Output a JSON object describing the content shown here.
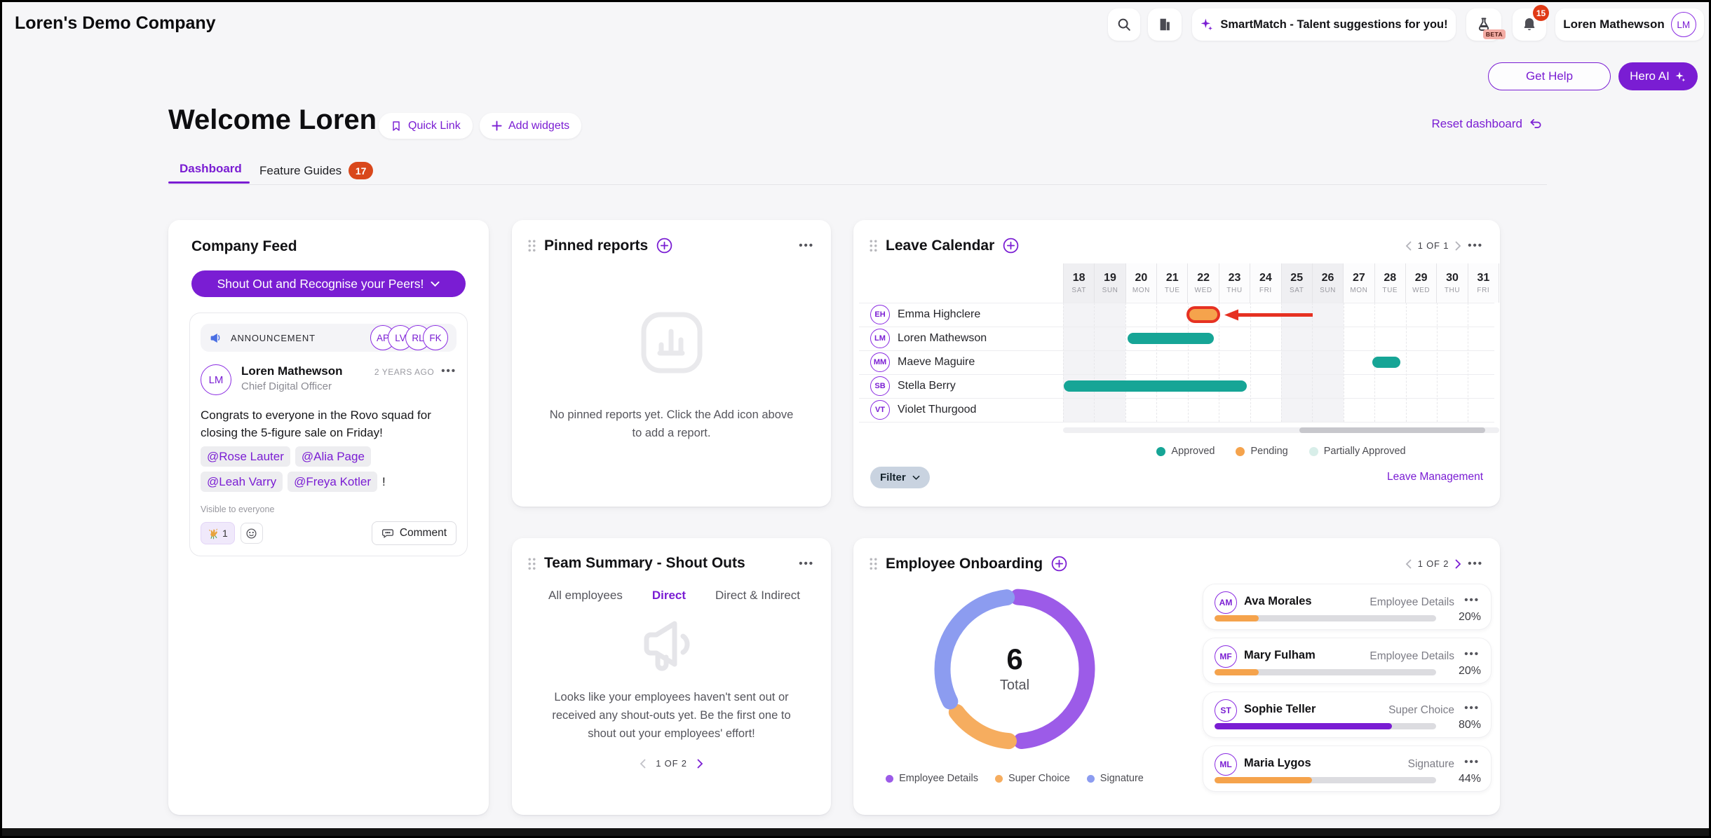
{
  "topbar": {
    "company_name": "Loren's Demo Company",
    "smartmatch": "SmartMatch - Talent suggestions for you!",
    "beta": "BETA",
    "notification_count": "15",
    "user_name": "Loren Mathewson",
    "user_initials": "LM"
  },
  "header_actions": {
    "get_help": "Get Help",
    "hero_ai": "Hero AI"
  },
  "welcome": {
    "title": "Welcome Loren",
    "quick_link": "Quick Link",
    "add_widgets": "Add widgets",
    "reset": "Reset dashboard"
  },
  "tabs": {
    "dashboard": "Dashboard",
    "feature_guides": "Feature Guides",
    "badge": "17"
  },
  "company_feed": {
    "title": "Company Feed",
    "shoutout_button": "Shout Out and Recognise your Peers!",
    "announcement_label": "ANNOUNCEMENT",
    "announcement_avatars": [
      "AP",
      "LV",
      "RL",
      "FK"
    ],
    "post": {
      "author": "Loren Mathewson",
      "author_initials": "LM",
      "role": "Chief Digital Officer",
      "time": "2 YEARS AGO",
      "more": "•••",
      "line1": "Congrats to everyone in the Rovo squad for",
      "line2": "closing the 5-figure sale on Friday!",
      "mentions": [
        "@Rose Lauter",
        "@Alia Page",
        "@Leah Varry",
        "@Freya Kotler"
      ],
      "suffix": "!",
      "visibility": "Visible to everyone",
      "reaction_count": "1",
      "comment_label": "Comment"
    }
  },
  "pinned_reports": {
    "title": "Pinned reports",
    "more": "•••",
    "empty_line1": "No pinned reports yet. Click the Add icon above",
    "empty_line2": "to add a report."
  },
  "leave_calendar": {
    "title": "Leave Calendar",
    "pagination": "1 OF 1",
    "more": "•••",
    "days": [
      {
        "num": "18",
        "dow": "SAT"
      },
      {
        "num": "19",
        "dow": "SUN"
      },
      {
        "num": "20",
        "dow": "MON"
      },
      {
        "num": "21",
        "dow": "TUE"
      },
      {
        "num": "22",
        "dow": "WED"
      },
      {
        "num": "23",
        "dow": "THU"
      },
      {
        "num": "24",
        "dow": "FRI"
      },
      {
        "num": "25",
        "dow": "SAT"
      },
      {
        "num": "26",
        "dow": "SUN"
      },
      {
        "num": "27",
        "dow": "MON"
      },
      {
        "num": "28",
        "dow": "TUE"
      },
      {
        "num": "29",
        "dow": "WED"
      },
      {
        "num": "30",
        "dow": "THU"
      },
      {
        "num": "31",
        "dow": "FRI"
      }
    ],
    "people": [
      {
        "initials": "EH",
        "name": "Emma Highclere"
      },
      {
        "initials": "LM",
        "name": "Loren Mathewson"
      },
      {
        "initials": "MM",
        "name": "Maeve Maguire"
      },
      {
        "initials": "SB",
        "name": "Stella Berry"
      },
      {
        "initials": "VT",
        "name": "Violet Thurgood"
      }
    ],
    "bars": [
      {
        "row": 0,
        "start": 4.06,
        "end": 4.95,
        "status": "pending",
        "annotated": true
      },
      {
        "row": 1,
        "start": 2.08,
        "end": 4.85,
        "status": "approved",
        "annotated": false
      },
      {
        "row": 2,
        "start": 9.92,
        "end": 10.82,
        "status": "approved",
        "annotated": false
      },
      {
        "row": 3,
        "start": 0.03,
        "end": 5.9,
        "status": "approved",
        "annotated": false
      }
    ],
    "colors": {
      "approved": "#16A596",
      "pending": "#F5A34C",
      "partially": "#D8EEE9",
      "annotation": "#E63122"
    },
    "legend": [
      {
        "label": "Approved",
        "color": "#16A596"
      },
      {
        "label": "Pending",
        "color": "#F5A34C"
      },
      {
        "label": "Partially Approved",
        "color": "#D8EEE9"
      }
    ],
    "filter_label": "Filter",
    "link": "Leave Management"
  },
  "team_summary": {
    "title": "Team Summary - Shout Outs",
    "more": "•••",
    "tabs": [
      {
        "label": "All employees",
        "active": false
      },
      {
        "label": "Direct",
        "active": true
      },
      {
        "label": "Direct & Indirect",
        "active": false
      }
    ],
    "empty_line1": "Looks like your employees haven't sent out or",
    "empty_line2": "received any shout-outs yet. Be the first one to",
    "empty_line3": "shout out your employees' effort!",
    "pagination": "1 OF 2"
  },
  "onboarding": {
    "title": "Employee Onboarding",
    "pagination": "1 OF 2",
    "more": "•••",
    "total": "6",
    "total_label": "Total",
    "chart": {
      "type": "donut",
      "segments": [
        {
          "label": "Employee Details",
          "color": "#9C5BE8",
          "start": 0.007,
          "frac": 0.478
        },
        {
          "label": "Super Choice",
          "color": "#F6AD5F",
          "start": 0.513,
          "frac": 0.135
        },
        {
          "label": "Signature",
          "color": "#8C9CF0",
          "start": 0.676,
          "frac": 0.306
        }
      ]
    },
    "legend": [
      {
        "label": "Employee Details",
        "color": "#9C5BE8"
      },
      {
        "label": "Super Choice",
        "color": "#F6AD5F"
      },
      {
        "label": "Signature",
        "color": "#8C9CF0"
      }
    ],
    "employees": [
      {
        "initials": "AM",
        "name": "Ava Morales",
        "stage": "Employee Details",
        "more": "•••",
        "progress_pct": 20,
        "pct_label": "20%",
        "bar_color": "#F5A34C"
      },
      {
        "initials": "MF",
        "name": "Mary Fulham",
        "stage": "Employee Details",
        "more": "•••",
        "progress_pct": 20,
        "pct_label": "20%",
        "bar_color": "#F5A34C"
      },
      {
        "initials": "ST",
        "name": "Sophie Teller",
        "stage": "Super Choice",
        "more": "•••",
        "progress_pct": 80,
        "pct_label": "80%",
        "bar_color": "#7A1DD3"
      },
      {
        "initials": "ML",
        "name": "Maria Lygos",
        "stage": "Signature",
        "more": "•••",
        "progress_pct": 44,
        "pct_label": "44%",
        "bar_color": "#F5A34C"
      }
    ]
  }
}
